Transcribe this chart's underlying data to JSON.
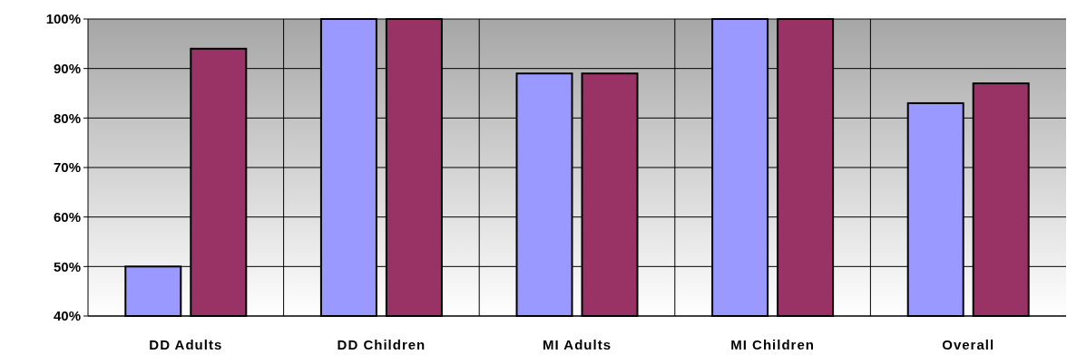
{
  "chart_data": {
    "type": "bar",
    "categories": [
      "DD Adults",
      "DD Children",
      "MI Adults",
      "MI Children",
      "Overall"
    ],
    "series": [
      {
        "color": "#9999ff",
        "values": [
          50,
          100,
          89,
          100,
          83
        ]
      },
      {
        "color": "#993366",
        "values": [
          94,
          100,
          89,
          100,
          87
        ]
      }
    ],
    "ylim": [
      40,
      100
    ],
    "yticks": [
      {
        "value": 40,
        "label": "40%"
      },
      {
        "value": 50,
        "label": "50%"
      },
      {
        "value": 60,
        "label": "60%"
      },
      {
        "value": 70,
        "label": "70%"
      },
      {
        "value": 80,
        "label": "80%"
      },
      {
        "value": 90,
        "label": "90%"
      },
      {
        "value": 100,
        "label": "100%"
      }
    ],
    "grid": true
  }
}
